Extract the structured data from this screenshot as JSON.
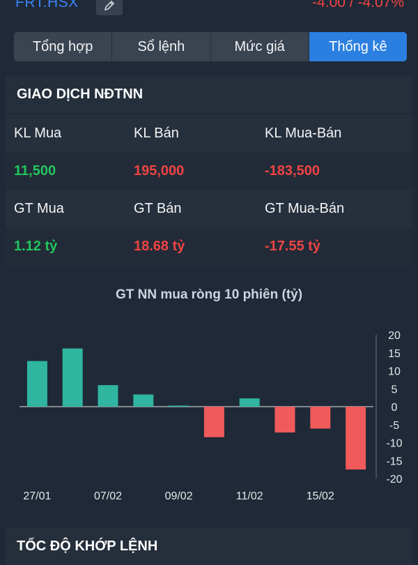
{
  "header": {
    "symbol": "FRT.HSX",
    "change": "-4.00 / -4.07%"
  },
  "tabs": [
    {
      "label": "Tổng hợp",
      "active": false
    },
    {
      "label": "Sổ lệnh",
      "active": false
    },
    {
      "label": "Mức giá",
      "active": false
    },
    {
      "label": "Thống kê",
      "active": true
    }
  ],
  "foreign": {
    "title": "GIAO DỊCH NĐTNN",
    "kl_mua_label": "KL Mua",
    "kl_ban_label": "KL Bán",
    "kl_net_label": "KL Mua-Bán",
    "kl_mua": "11,500",
    "kl_ban": "195,000",
    "kl_net": "-183,500",
    "gt_mua_label": "GT Mua",
    "gt_ban_label": "GT Bán",
    "gt_net_label": "GT Mua-Bán",
    "gt_mua": "1.12 tỷ",
    "gt_ban": "18.68 tỷ",
    "gt_net": "-17.55 tỷ"
  },
  "colors": {
    "positive": "#2fb5a0",
    "negative": "#f05a5a",
    "accent": "#2b7fe0"
  },
  "chart_data": {
    "type": "bar",
    "title": "GT NN mua ròng 10 phiên (tỷ)",
    "x_tick_labels": [
      "27/01",
      "07/02",
      "09/02",
      "11/02",
      "15/02"
    ],
    "values": [
      12.7,
      16.2,
      6.0,
      3.4,
      0.3,
      -8.5,
      2.3,
      -7.2,
      -6.1,
      -17.5
    ],
    "ylim": [
      -20,
      20
    ],
    "y_ticks": [
      20,
      15,
      10,
      5,
      0,
      -5,
      -10,
      -15,
      -20
    ],
    "grid": false,
    "legend": "none"
  },
  "footer": {
    "title": "TỐC ĐỘ KHỚP LỆNH"
  }
}
